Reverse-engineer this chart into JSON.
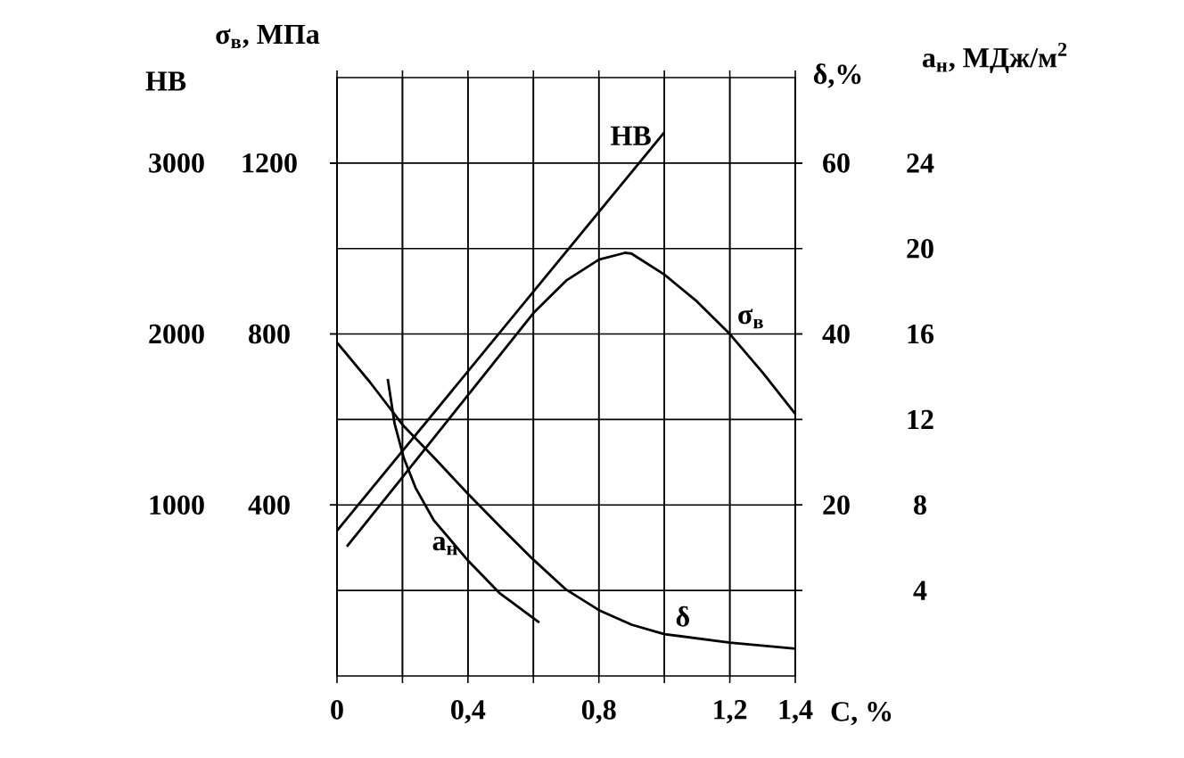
{
  "chart_data": [
    {
      "type": "line",
      "xlabel": "C, %",
      "ylabel": "НВ",
      "y2label": "σ$_{в}$, МПа",
      "xlim": [
        0,
        1.4
      ],
      "xticks": [
        0,
        {
          "value": 0.2,
          "label": null
        },
        {
          "value": 0.4,
          "label": "0,4"
        },
        {
          "value": 0.6,
          "label": null
        },
        {
          "value": 0.8,
          "label": "0,8"
        },
        {
          "value": 1.0,
          "label": null
        },
        {
          "value": 1.2,
          "label": "1,2"
        },
        {
          "value": 1.4,
          "label": "1,4"
        }
      ],
      "ylim": [
        0,
        3500
      ],
      "yticks": [
        1000,
        2000,
        3000
      ],
      "y2lim": [
        0,
        1400
      ],
      "y2ticks": [
        400,
        800,
        1200
      ],
      "grid": "x",
      "marker": "none",
      "line_style": "solid",
      "series": [
        {
          "name": "НВ",
          "color": "#000000",
          "x": [
            0,
            1.0
          ],
          "values": [
            850,
            3180
          ]
        },
        {
          "name": "σ$_{в}$",
          "color": "#000000",
          "axis": "y2",
          "x": [
            0.03,
            0.2,
            0.4,
            0.6,
            0.7,
            0.8,
            0.88,
            0.9,
            1.0,
            1.1,
            1.2,
            1.3,
            1.4
          ],
          "values": [
            303,
            465,
            657,
            849,
            925,
            974,
            990,
            988,
            939,
            876,
            800,
            710,
            613
          ]
        }
      ]
    },
    {
      "type": "line",
      "ylabel": "δ,%",
      "y2label": "a$_{н}$, МДж/м$^{2}$",
      "xlim": [
        0,
        1.4
      ],
      "ylim": [
        0,
        70
      ],
      "yticks": [
        20,
        40,
        60
      ],
      "y2lim": [
        0,
        28
      ],
      "y2ticks": [
        4,
        8,
        12,
        16,
        20,
        24
      ],
      "grid": "y",
      "marker": "none",
      "line_style": "solid",
      "tick_labels": "y",
      "series": [
        {
          "name": "δ",
          "color": "#000000",
          "x": [
            0,
            0.1,
            0.2,
            0.3,
            0.4,
            0.5,
            0.6,
            0.7,
            0.8,
            0.9,
            1.0,
            1.2,
            1.4
          ],
          "values": [
            39,
            34.4,
            29.4,
            25.4,
            21.3,
            17.4,
            13.6,
            10.1,
            7.7,
            6.0,
            4.9,
            3.9,
            3.2
          ]
        },
        {
          "name": "a$_{н}$",
          "color": "#000000",
          "axis": "y2",
          "x": [
            0.155,
            0.176,
            0.204,
            0.24,
            0.295,
            0.4,
            0.495,
            0.618
          ],
          "values": [
            13.9,
            11.8,
            10.2,
            8.8,
            7.3,
            5.4,
            3.9,
            2.5
          ]
        }
      ]
    }
  ]
}
